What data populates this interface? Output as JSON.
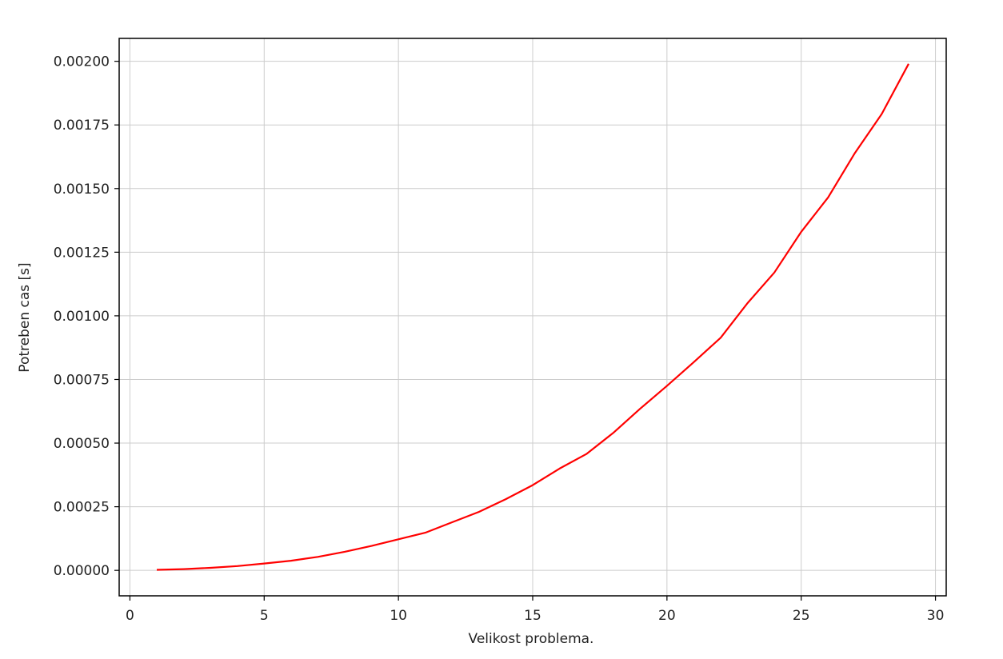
{
  "chart_data": {
    "type": "line",
    "title": "",
    "xlabel": "Velikost problema.",
    "ylabel": "Potreben cas [s]",
    "xlim": [
      -0.4,
      30.4
    ],
    "ylim": [
      -0.0001,
      0.00209
    ],
    "xticks": [
      0,
      5,
      10,
      15,
      20,
      25,
      30
    ],
    "xtick_labels": [
      "0",
      "5",
      "10",
      "15",
      "20",
      "25",
      "30"
    ],
    "yticks": [
      0,
      0.00025,
      0.0005,
      0.00075,
      0.001,
      0.00125,
      0.0015,
      0.00175,
      0.002
    ],
    "ytick_labels": [
      "0.00000",
      "0.00025",
      "0.00050",
      "0.00075",
      "0.00100",
      "0.00125",
      "0.00150",
      "0.00175",
      "0.00200"
    ],
    "grid": true,
    "series": [
      {
        "color": "#ff0000",
        "x": [
          1,
          2,
          3,
          4,
          5,
          6,
          7,
          8,
          9,
          10,
          11,
          12,
          13,
          14,
          15,
          16,
          17,
          18,
          19,
          20,
          21,
          22,
          23,
          24,
          25,
          26,
          27,
          28,
          29
        ],
        "y": [
          2e-06,
          5e-06,
          1e-05,
          1.7e-05,
          2.7e-05,
          3.8e-05,
          5.3e-05,
          7.3e-05,
          9.6e-05,
          0.000122,
          0.000148,
          0.000189,
          0.00023,
          0.00028,
          0.000335,
          0.0004,
          0.000457,
          0.00054,
          0.000635,
          0.000725,
          0.000818,
          0.000914,
          0.00105,
          0.00117,
          0.00133,
          0.001465,
          0.00164,
          0.001793,
          0.00199
        ]
      }
    ]
  }
}
